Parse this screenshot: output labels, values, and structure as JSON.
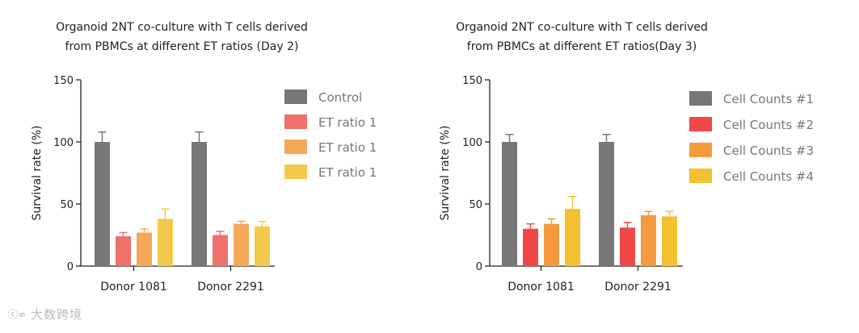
{
  "chart_data": [
    {
      "type": "bar",
      "title_lines": [
        "Organoid 2NT co-culture with T cells derived",
        "from PBMCs at different ET ratios (Day 2)"
      ],
      "ylabel": "Survival rate (%)",
      "ylim": [
        0,
        150
      ],
      "yticks": [
        0,
        50,
        100,
        150
      ],
      "categories": [
        "Donor 1081",
        "Donor 2291"
      ],
      "series": [
        {
          "name": "Control",
          "color": "#777777",
          "values": [
            100,
            100
          ],
          "errors": [
            8,
            8
          ]
        },
        {
          "name": "ET ratio 1",
          "color": "#F0706A",
          "values": [
            24,
            25
          ],
          "errors": [
            3,
            3
          ]
        },
        {
          "name": "ET ratio 1",
          "color": "#F5A85A",
          "values": [
            27,
            34
          ],
          "errors": [
            3,
            2
          ]
        },
        {
          "name": "ET ratio 1",
          "color": "#F2C94C",
          "values": [
            38,
            32
          ],
          "errors": [
            8,
            4
          ]
        }
      ]
    },
    {
      "type": "bar",
      "title_lines": [
        "Organoid 2NT co-culture with T cells derived",
        "from PBMCs at different ET ratios(Day 3)"
      ],
      "ylabel": "Survival rate (%)",
      "ylim": [
        0,
        150
      ],
      "yticks": [
        0,
        50,
        100,
        150
      ],
      "categories": [
        "Donor 1081",
        "Donor 2291"
      ],
      "series": [
        {
          "name": "Cell Counts #1",
          "color": "#777777",
          "values": [
            100,
            100
          ],
          "errors": [
            6,
            6
          ]
        },
        {
          "name": "Cell Counts #2",
          "color": "#F04848",
          "values": [
            30,
            31
          ],
          "errors": [
            4,
            4
          ]
        },
        {
          "name": "Cell Counts #3",
          "color": "#F59A3C",
          "values": [
            34,
            41
          ],
          "errors": [
            4,
            3
          ]
        },
        {
          "name": "Cell Counts #4",
          "color": "#F2C031",
          "values": [
            46,
            40
          ],
          "errors": [
            10,
            4
          ]
        }
      ]
    }
  ],
  "footer": {
    "mark": "ⓒ∞",
    "brand": "大数跨境"
  }
}
